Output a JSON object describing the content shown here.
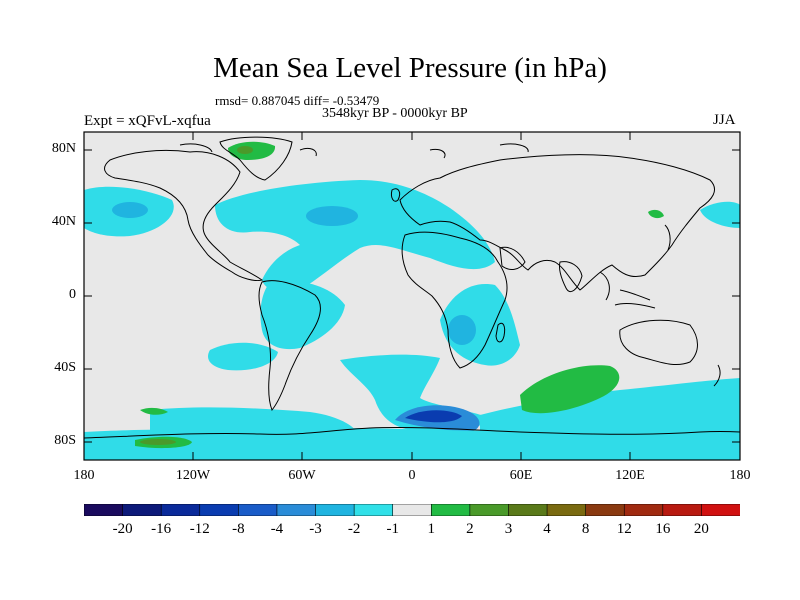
{
  "title": "Mean Sea Level Pressure (in hPa)",
  "stats": "rmsd= 0.887045  diff= -0.53479",
  "period": "3548kyr BP - 0000kyr BP",
  "experiment": "Expt = xQFvL-xqfua",
  "season": "JJA",
  "y_ticks": [
    "80N",
    "40N",
    "0",
    "40S",
    "80S"
  ],
  "x_ticks": [
    "180",
    "120W",
    "60W",
    "0",
    "60E",
    "120E",
    "180"
  ],
  "colorbar": {
    "labels": [
      "-20",
      "-16",
      "-12",
      "-8",
      "-4",
      "-3",
      "-2",
      "-1",
      "1",
      "2",
      "3",
      "4",
      "8",
      "12",
      "16",
      "20"
    ],
    "colors": [
      "#1a0a5e",
      "#0d1a7a",
      "#0a2a9a",
      "#0a3cb0",
      "#1a5cc8",
      "#2a8cd8",
      "#20b4e0",
      "#30e0e8",
      "#e8e8e8",
      "#22bb44",
      "#4a9a2a",
      "#5a7a1a",
      "#7a6a10",
      "#8a3a10",
      "#a02a10",
      "#b81a10",
      "#d01010"
    ]
  },
  "colors": {
    "background": "#e8e8e8",
    "light_blue": "#30dce8",
    "mid_blue": "#20b4e0",
    "blue": "#2a8cd8",
    "dark_blue": "#0a3cb0",
    "green": "#22bb44",
    "dark_green": "#4a9a2a",
    "olive": "#5a7a1a"
  }
}
